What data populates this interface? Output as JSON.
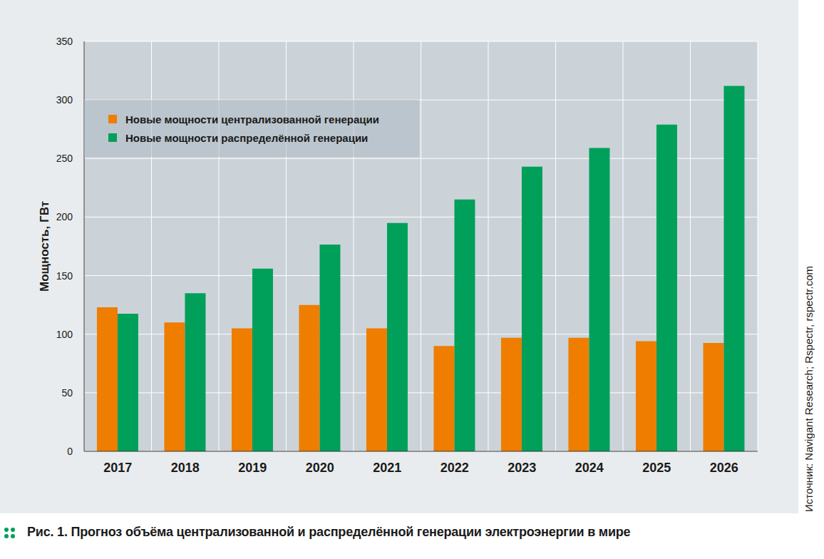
{
  "chart_data": {
    "type": "bar",
    "title": "Рис. 1. Прогноз объёма централизованной и распределённой генерации электроэнергии в мире",
    "y_label": "Мощность, ГВт",
    "source": "Источник: Navigant Research; Rspectr, rspectr.com",
    "categories": [
      "2017",
      "2018",
      "2019",
      "2020",
      "2021",
      "2022",
      "2023",
      "2024",
      "2025",
      "2026"
    ],
    "series": [
      {
        "name": "Новые мощности централизованной генерации",
        "color": "#ef7d00",
        "values": [
          123,
          110,
          105,
          125,
          105,
          90,
          97,
          97,
          94,
          92.5
        ]
      },
      {
        "name": "Новые мощности распределённой генерации",
        "color": "#00a05a",
        "values": [
          117.5,
          135,
          156,
          176.5,
          195,
          215,
          243,
          259,
          279,
          312
        ]
      }
    ],
    "ylim": [
      0,
      350
    ],
    "yticks": [
      0,
      50,
      100,
      150,
      200,
      250,
      300,
      350
    ],
    "grid": true,
    "legend": "upper left"
  }
}
